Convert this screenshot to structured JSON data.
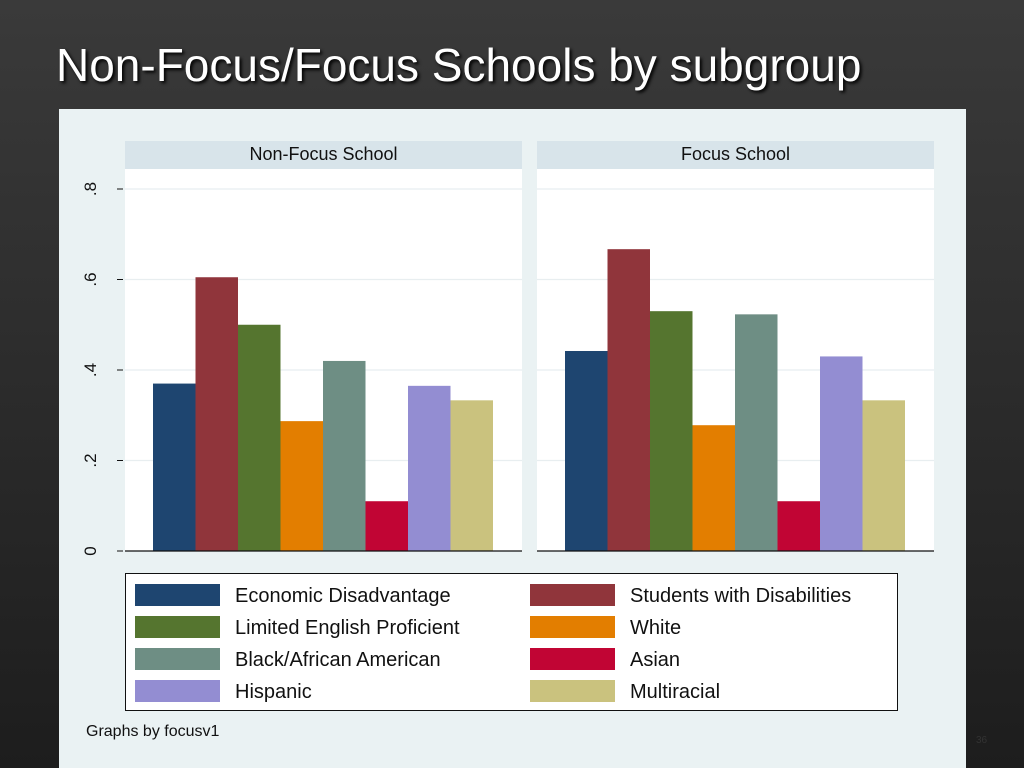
{
  "slide": {
    "title": "Non-Focus/Focus Schools by subgroup",
    "footnote": "Graphs by focusv1",
    "page_number": "36"
  },
  "chart_data": {
    "type": "bar",
    "title": "",
    "xlabel": "",
    "ylabel": "",
    "ylim": [
      0,
      0.8
    ],
    "yticks": [
      0,
      0.2,
      0.4,
      0.6,
      0.8
    ],
    "ytick_labels": [
      "0",
      ".2",
      ".4",
      ".6",
      ".8"
    ],
    "grid": true,
    "legend_position": "bottom",
    "series": [
      {
        "name": "Economic Disadvantage",
        "color": "#1e4570"
      },
      {
        "name": "Students with Disabilities",
        "color": "#90353b"
      },
      {
        "name": "Limited English Proficient",
        "color": "#55752f"
      },
      {
        "name": "White",
        "color": "#e37e00"
      },
      {
        "name": "Black/African American",
        "color": "#6e8e84"
      },
      {
        "name": "Asian",
        "color": "#c10534"
      },
      {
        "name": "Hispanic",
        "color": "#938dd2"
      },
      {
        "name": "Multiracial",
        "color": "#cac27e"
      }
    ],
    "panels": [
      {
        "label": "Non-Focus School",
        "values": [
          0.37,
          0.605,
          0.5,
          0.287,
          0.42,
          0.11,
          0.365,
          0.333
        ]
      },
      {
        "label": "Focus School",
        "values": [
          0.442,
          0.667,
          0.53,
          0.278,
          0.523,
          0.11,
          0.43,
          0.333
        ]
      }
    ]
  }
}
